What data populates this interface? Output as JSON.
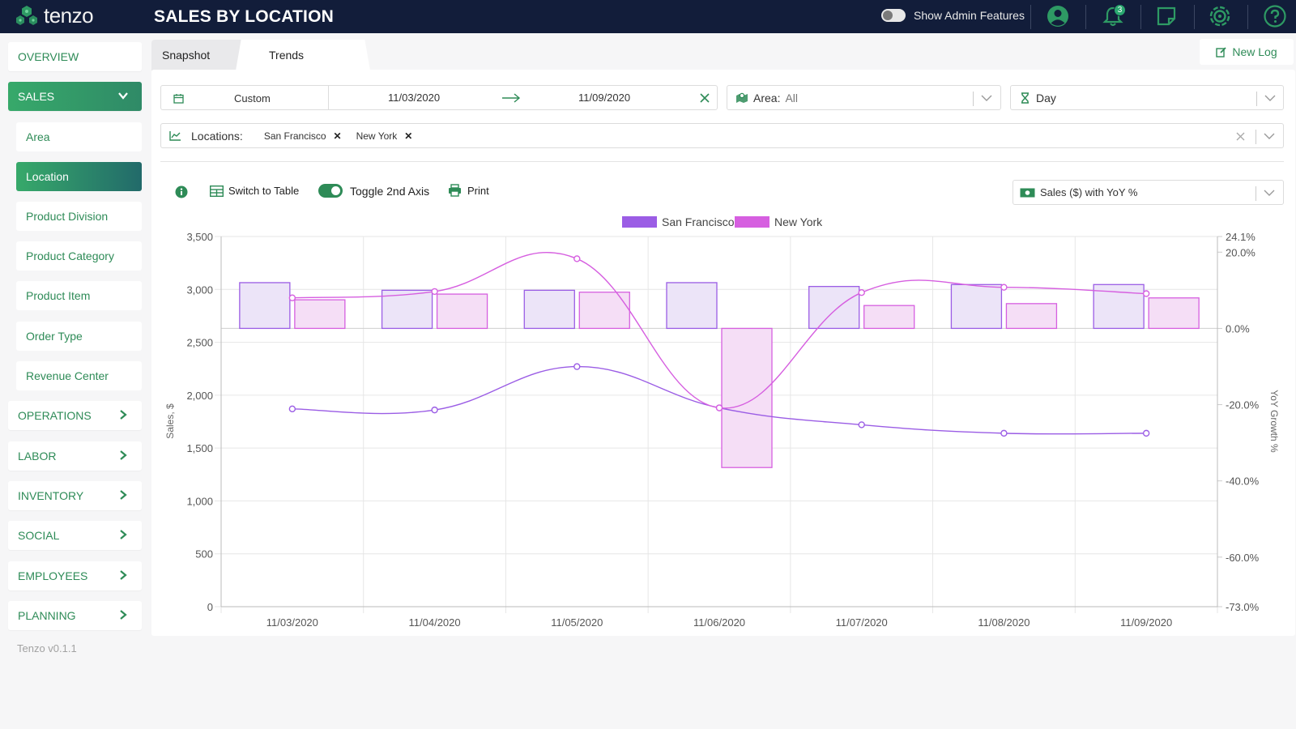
{
  "app": {
    "brand": "tenzo",
    "page_title": "SALES BY LOCATION",
    "version": "Tenzo v0.1.1"
  },
  "header": {
    "admin_label": "Show Admin Features",
    "notification_count": "3"
  },
  "sidebar": {
    "overview": "OVERVIEW",
    "sales": "SALES",
    "sub_items": [
      "Area",
      "Location",
      "Product Division",
      "Product Category",
      "Product Item",
      "Order Type",
      "Revenue Center"
    ],
    "sections": [
      "OPERATIONS",
      "LABOR",
      "INVENTORY",
      "SOCIAL",
      "EMPLOYEES",
      "PLANNING"
    ]
  },
  "tabs": {
    "snapshot": "Snapshot",
    "trends": "Trends"
  },
  "new_log": "New Log",
  "filters": {
    "range_type": "Custom",
    "start_date": "11/03/2020",
    "end_date": "11/09/2020",
    "area_label": "Area:",
    "area_value": "All",
    "granularity": "Day",
    "locations_label": "Locations:",
    "locations": [
      "San Francisco",
      "New York"
    ]
  },
  "toolbar": {
    "switch_to_table": "Switch to Table",
    "toggle_2nd_axis": "Toggle 2nd Axis",
    "print": "Print",
    "metric": "Sales ($) with YoY %"
  },
  "colors": {
    "accent": "#2e8b57",
    "sf": "#9b5de5",
    "ny": "#d65fe0",
    "sf_fill": "#ece4f8",
    "ny_fill": "#f5def6"
  },
  "chart_data": {
    "type": "bar",
    "categories": [
      "11/03/2020",
      "11/04/2020",
      "11/05/2020",
      "11/06/2020",
      "11/07/2020",
      "11/08/2020",
      "11/09/2020"
    ],
    "ylabel": "Sales, $",
    "y2label": "YoY Growth %",
    "ylim": [
      0,
      3500
    ],
    "y_ticks": [
      "0",
      "500",
      "1,000",
      "1,500",
      "2,000",
      "2,500",
      "3,000",
      "3,500"
    ],
    "y2_ticks": [
      "-73.0%",
      "-60.0%",
      "-40.0%",
      "-20.0%",
      "0.0%",
      "20.0%",
      "24.1%"
    ],
    "y2lim": [
      -73,
      24.1
    ],
    "legend": "top",
    "grid": true,
    "series": [
      {
        "name": "San Francisco",
        "type": "bar",
        "axis": "y2",
        "values": [
          12,
          10,
          10,
          12,
          11,
          11.5,
          11.5
        ]
      },
      {
        "name": "New York",
        "type": "bar",
        "axis": "y2",
        "values": [
          7.5,
          9,
          9.5,
          -36.5,
          6,
          6.5,
          8
        ]
      },
      {
        "name": "San Francisco",
        "type": "line",
        "axis": "y",
        "values": [
          1870,
          1860,
          2270,
          1880,
          1720,
          1640,
          1640
        ]
      },
      {
        "name": "New York",
        "type": "line",
        "axis": "y",
        "values": [
          2920,
          2980,
          3290,
          1880,
          2970,
          3020,
          2960
        ]
      }
    ]
  }
}
